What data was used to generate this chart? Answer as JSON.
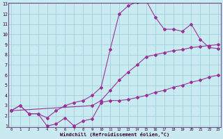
{
  "bg_color": "#c8eaf0",
  "grid_color": "#99ccd9",
  "line_color": "#993399",
  "xlabel": "Windchill (Refroidissement éolien,°C)",
  "xmin": 0,
  "xmax": 23,
  "ymin": 1,
  "ymax": 13,
  "line1_x": [
    0,
    1,
    2,
    3,
    4,
    5,
    6,
    7,
    8,
    9,
    10,
    11,
    12,
    13,
    14,
    15,
    16,
    17,
    18,
    19,
    20,
    21,
    22,
    23
  ],
  "line1_y": [
    2.5,
    3.0,
    2.2,
    2.2,
    1.0,
    1.2,
    1.8,
    1.0,
    1.5,
    1.7,
    3.3,
    3.5,
    3.5,
    3.6,
    3.8,
    4.0,
    4.3,
    4.5,
    4.8,
    5.0,
    5.3,
    5.5,
    5.8,
    6.0
  ],
  "line2_x": [
    0,
    1,
    2,
    3,
    4,
    5,
    6,
    7,
    8,
    9,
    10,
    11,
    12,
    13,
    14,
    15,
    16,
    17,
    18,
    19,
    20,
    21,
    22,
    23
  ],
  "line2_y": [
    2.5,
    3.0,
    2.2,
    2.2,
    1.8,
    2.5,
    3.0,
    3.3,
    3.5,
    4.0,
    4.8,
    8.5,
    12.0,
    12.8,
    13.2,
    13.3,
    11.7,
    10.5,
    10.5,
    10.3,
    11.0,
    9.5,
    8.7,
    8.6
  ],
  "line3_x": [
    0,
    9,
    10,
    11,
    12,
    13,
    14,
    15,
    16,
    17,
    18,
    19,
    20,
    21,
    22,
    23
  ],
  "line3_y": [
    2.5,
    3.0,
    3.5,
    4.5,
    5.5,
    6.3,
    7.0,
    7.8,
    8.0,
    8.2,
    8.4,
    8.5,
    8.7,
    8.8,
    8.9,
    9.0
  ]
}
